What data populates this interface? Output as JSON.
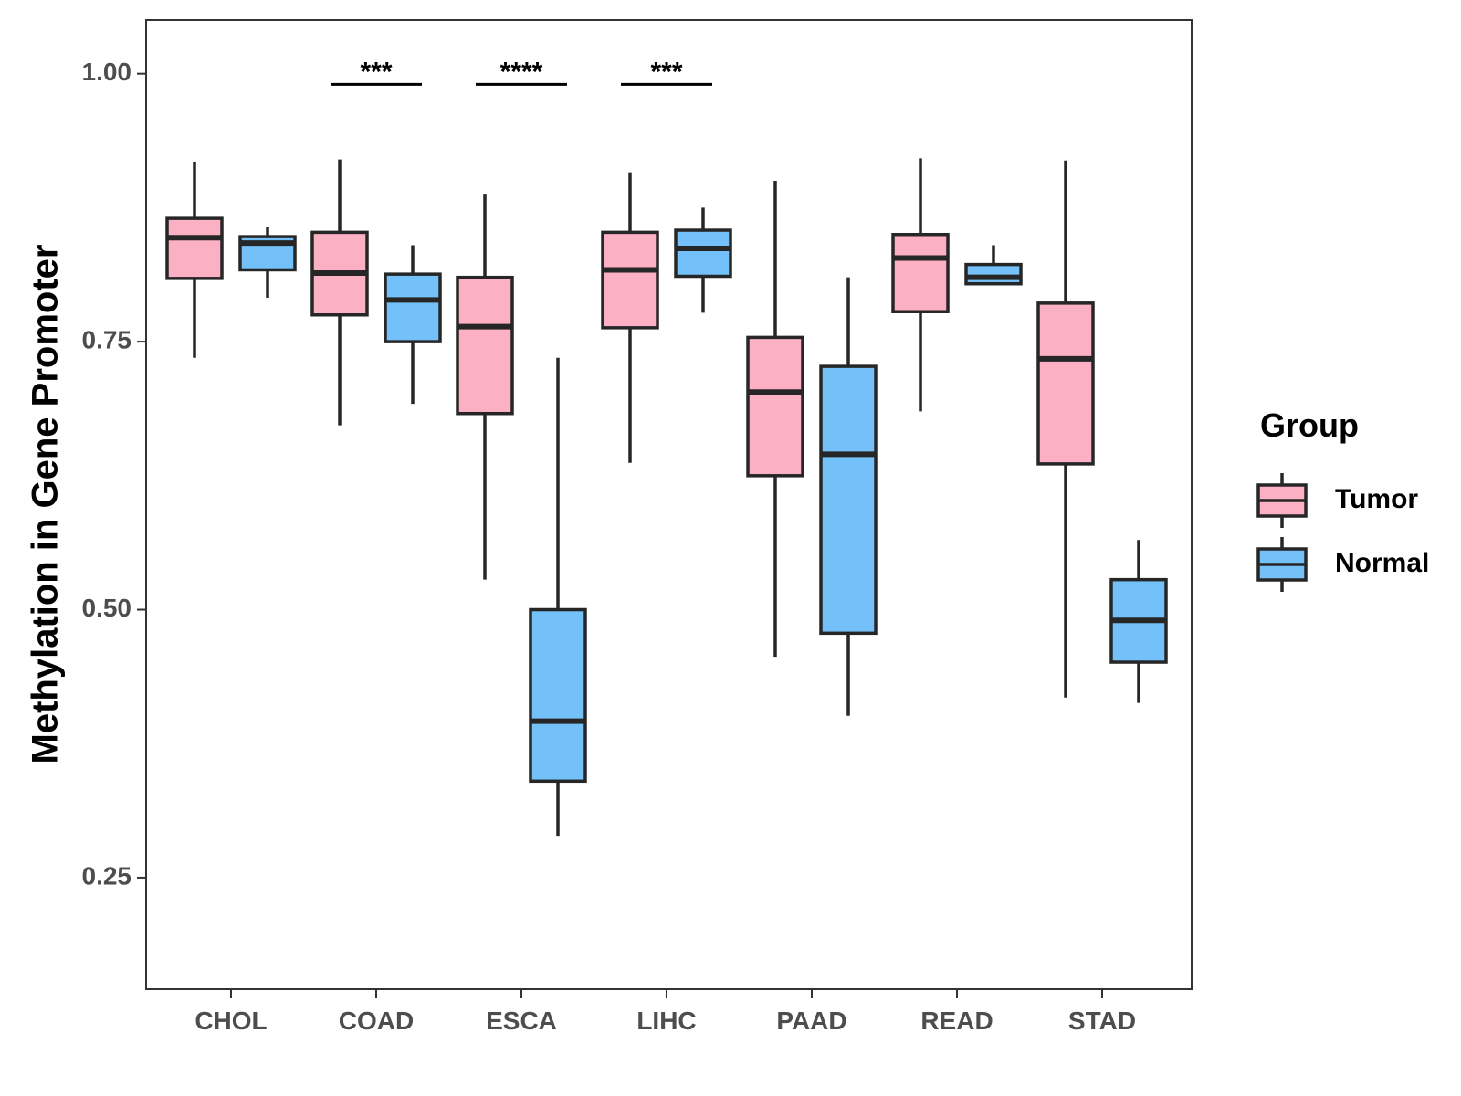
{
  "chart_data": {
    "type": "boxplot",
    "ylabel": "Methylation in Gene Promoter",
    "xlabel": "",
    "ylim": [
      0.146,
      1.05
    ],
    "yticks": [
      0.25,
      0.5,
      0.75,
      1.0
    ],
    "ytick_labels": [
      "0.25",
      "0.50",
      "0.75",
      "1.00"
    ],
    "categories": [
      "CHOL",
      "COAD",
      "ESCA",
      "LIHC",
      "PAAD",
      "READ",
      "STAD"
    ],
    "legend": {
      "title": "Group",
      "entries": [
        {
          "name": "Tumor",
          "color": "#FBB0C3"
        },
        {
          "name": "Normal",
          "color": "#74C0F9"
        }
      ]
    },
    "series": [
      {
        "name": "Tumor",
        "color": "#FBB0C3",
        "boxes": [
          {
            "category": "CHOL",
            "min": 0.735,
            "q1": 0.809,
            "median": 0.847,
            "q3": 0.865,
            "max": 0.918
          },
          {
            "category": "COAD",
            "min": 0.672,
            "q1": 0.775,
            "median": 0.814,
            "q3": 0.852,
            "max": 0.92
          },
          {
            "category": "ESCA",
            "min": 0.528,
            "q1": 0.683,
            "median": 0.764,
            "q3": 0.81,
            "max": 0.888
          },
          {
            "category": "LIHC",
            "min": 0.637,
            "q1": 0.763,
            "median": 0.817,
            "q3": 0.852,
            "max": 0.908
          },
          {
            "category": "PAAD",
            "min": 0.456,
            "q1": 0.625,
            "median": 0.703,
            "q3": 0.754,
            "max": 0.9
          },
          {
            "category": "READ",
            "min": 0.685,
            "q1": 0.778,
            "median": 0.828,
            "q3": 0.85,
            "max": 0.921
          },
          {
            "category": "STAD",
            "min": 0.418,
            "q1": 0.636,
            "median": 0.734,
            "q3": 0.786,
            "max": 0.919
          }
        ]
      },
      {
        "name": "Normal",
        "color": "#74C0F9",
        "boxes": [
          {
            "category": "CHOL",
            "min": 0.791,
            "q1": 0.817,
            "median": 0.842,
            "q3": 0.848,
            "max": 0.857
          },
          {
            "category": "COAD",
            "min": 0.692,
            "q1": 0.75,
            "median": 0.789,
            "q3": 0.813,
            "max": 0.84
          },
          {
            "category": "ESCA",
            "min": 0.289,
            "q1": 0.34,
            "median": 0.396,
            "q3": 0.5,
            "max": 0.735
          },
          {
            "category": "LIHC",
            "min": 0.777,
            "q1": 0.811,
            "median": 0.837,
            "q3": 0.854,
            "max": 0.875
          },
          {
            "category": "PAAD",
            "min": 0.401,
            "q1": 0.478,
            "median": 0.645,
            "q3": 0.727,
            "max": 0.81
          },
          {
            "category": "READ",
            "min": 0.804,
            "q1": 0.804,
            "median": 0.81,
            "q3": 0.822,
            "max": 0.84
          },
          {
            "category": "STAD",
            "min": 0.413,
            "q1": 0.451,
            "median": 0.49,
            "q3": 0.528,
            "max": 0.565
          }
        ]
      }
    ],
    "significance": [
      {
        "category": "COAD",
        "label": "***",
        "y": 0.99
      },
      {
        "category": "ESCA",
        "label": "****",
        "y": 0.99
      },
      {
        "category": "LIHC",
        "label": "***",
        "y": 0.99
      }
    ]
  }
}
